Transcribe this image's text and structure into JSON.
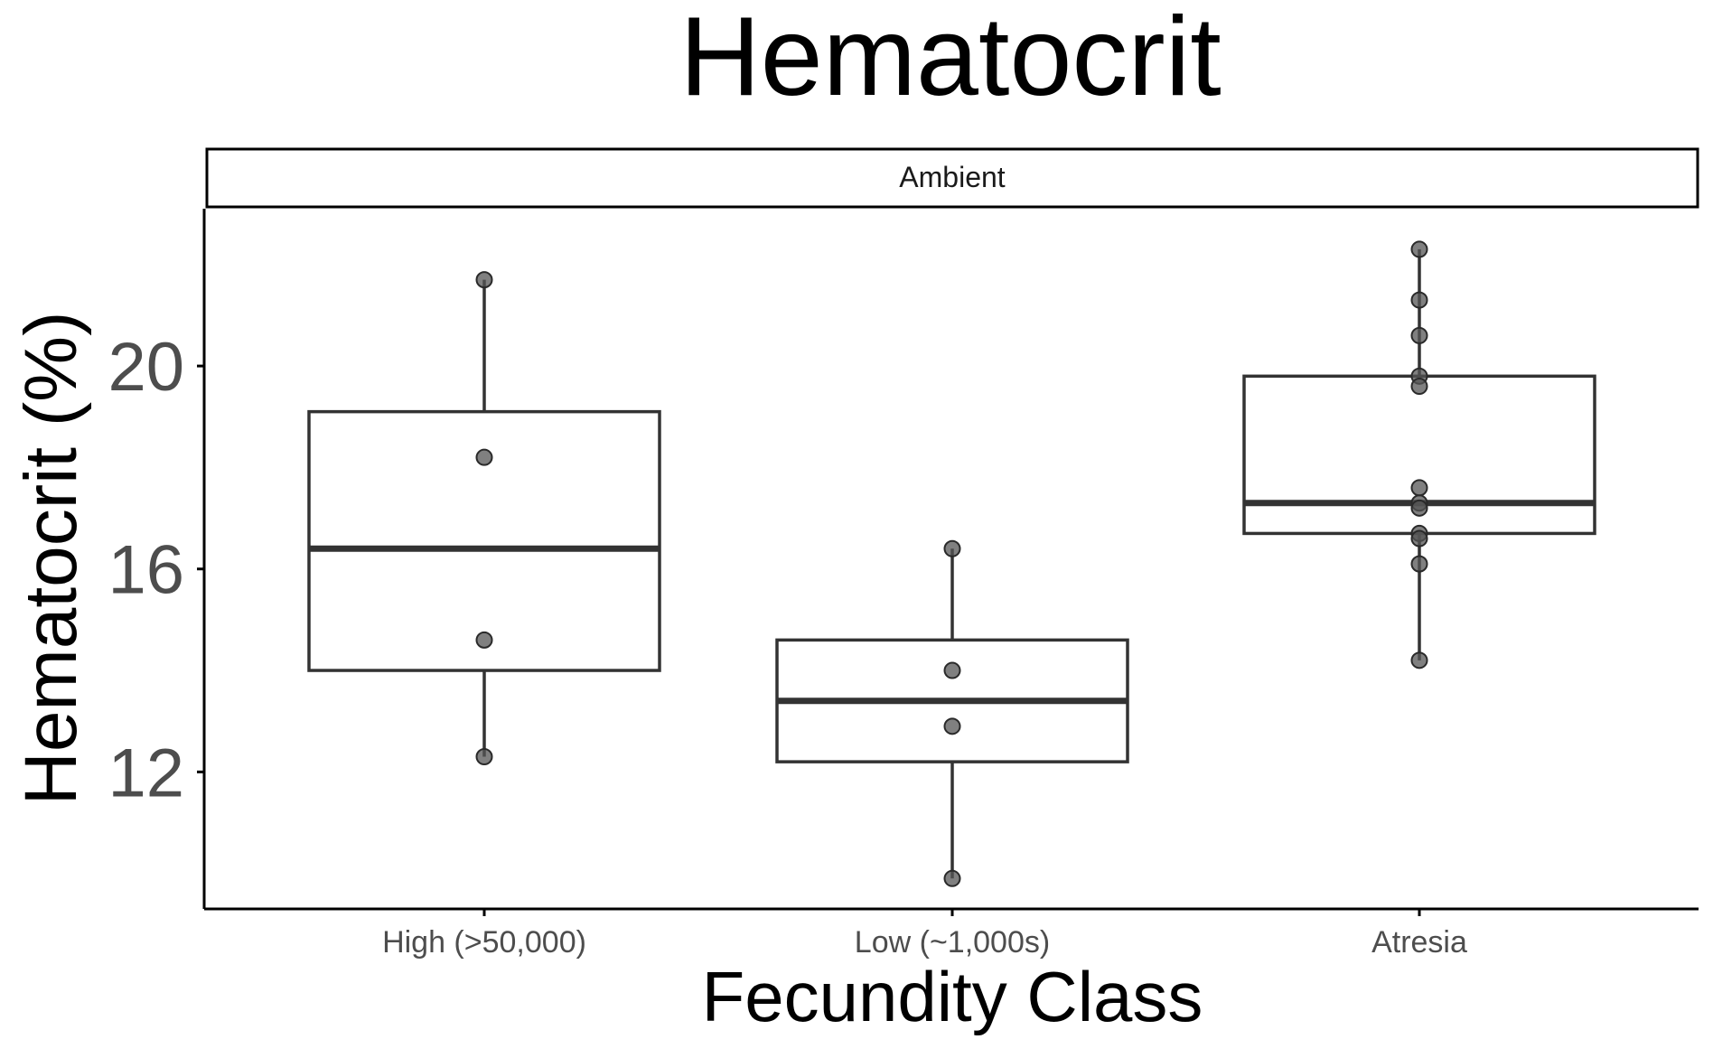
{
  "chart_data": {
    "type": "boxplot",
    "title": "Hematocrit",
    "facet_label": "Ambient",
    "xlabel": "Fecundity Class",
    "ylabel": "Hematocrit (%)",
    "ylim": [
      9.3,
      23.1
    ],
    "yticks": [
      12,
      16,
      20
    ],
    "grid": false,
    "legend": "none",
    "categories": [
      "High (>50,000)",
      "Low (~1,000s)",
      "Atresia"
    ],
    "boxes": [
      {
        "category": "High (>50,000)",
        "whisker_low": 12.3,
        "q1": 14.0,
        "median": 16.4,
        "q3": 19.1,
        "whisker_high": 21.7
      },
      {
        "category": "Low (~1,000s)",
        "whisker_low": 9.9,
        "q1": 12.2,
        "median": 13.4,
        "q3": 14.6,
        "whisker_high": 16.4
      },
      {
        "category": "Atresia",
        "whisker_low": 14.2,
        "q1": 16.7,
        "median": 17.3,
        "q3": 19.8,
        "whisker_high": 22.3
      }
    ],
    "points": [
      {
        "category": "High (>50,000)",
        "values": [
          21.7,
          18.2,
          14.6,
          12.3
        ]
      },
      {
        "category": "Low (~1,000s)",
        "values": [
          16.4,
          14.0,
          12.9,
          9.9
        ]
      },
      {
        "category": "Atresia",
        "values": [
          22.3,
          21.3,
          20.6,
          19.8,
          19.6,
          17.6,
          17.3,
          17.2,
          16.7,
          16.6,
          16.1,
          14.2
        ]
      }
    ],
    "colors": {
      "box_outline": "#333333",
      "box_fill": "#ffffff",
      "point_fill": "#555555",
      "axis": "#000000"
    }
  }
}
